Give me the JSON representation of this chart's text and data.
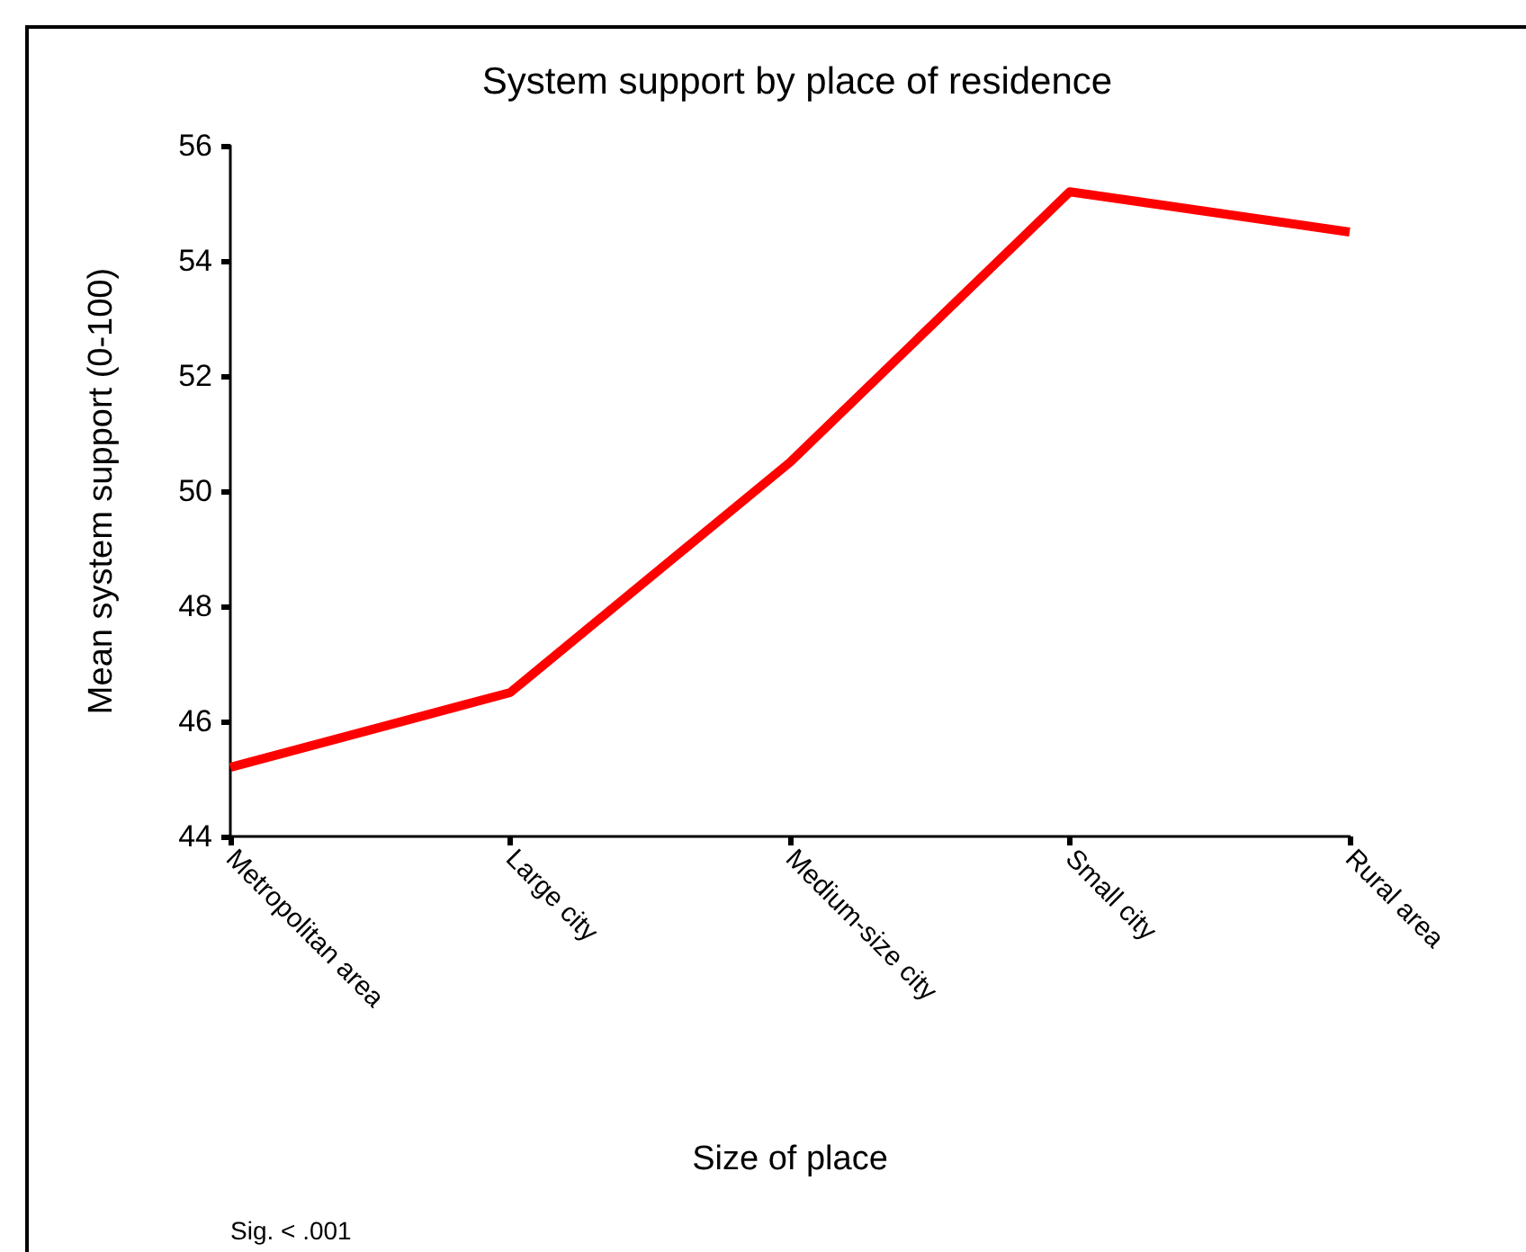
{
  "chart_data": {
    "type": "line",
    "title": "System support by place of residence",
    "xlabel": "Size of place",
    "ylabel": "Mean system support (0-100)",
    "categories": [
      "Metropolitan area",
      "Large city",
      "Medium-size city",
      "Small city",
      "Rural area"
    ],
    "series": [
      {
        "color": "#ff0000",
        "values": [
          45.2,
          46.5,
          50.5,
          55.2,
          54.5
        ]
      }
    ],
    "ylim": [
      44,
      56
    ],
    "yticks": [
      44,
      46,
      48,
      50,
      52,
      54,
      56
    ],
    "grid": false,
    "marker": "none",
    "line_style": "solid",
    "annotations": [
      "Sig. < .001"
    ]
  }
}
